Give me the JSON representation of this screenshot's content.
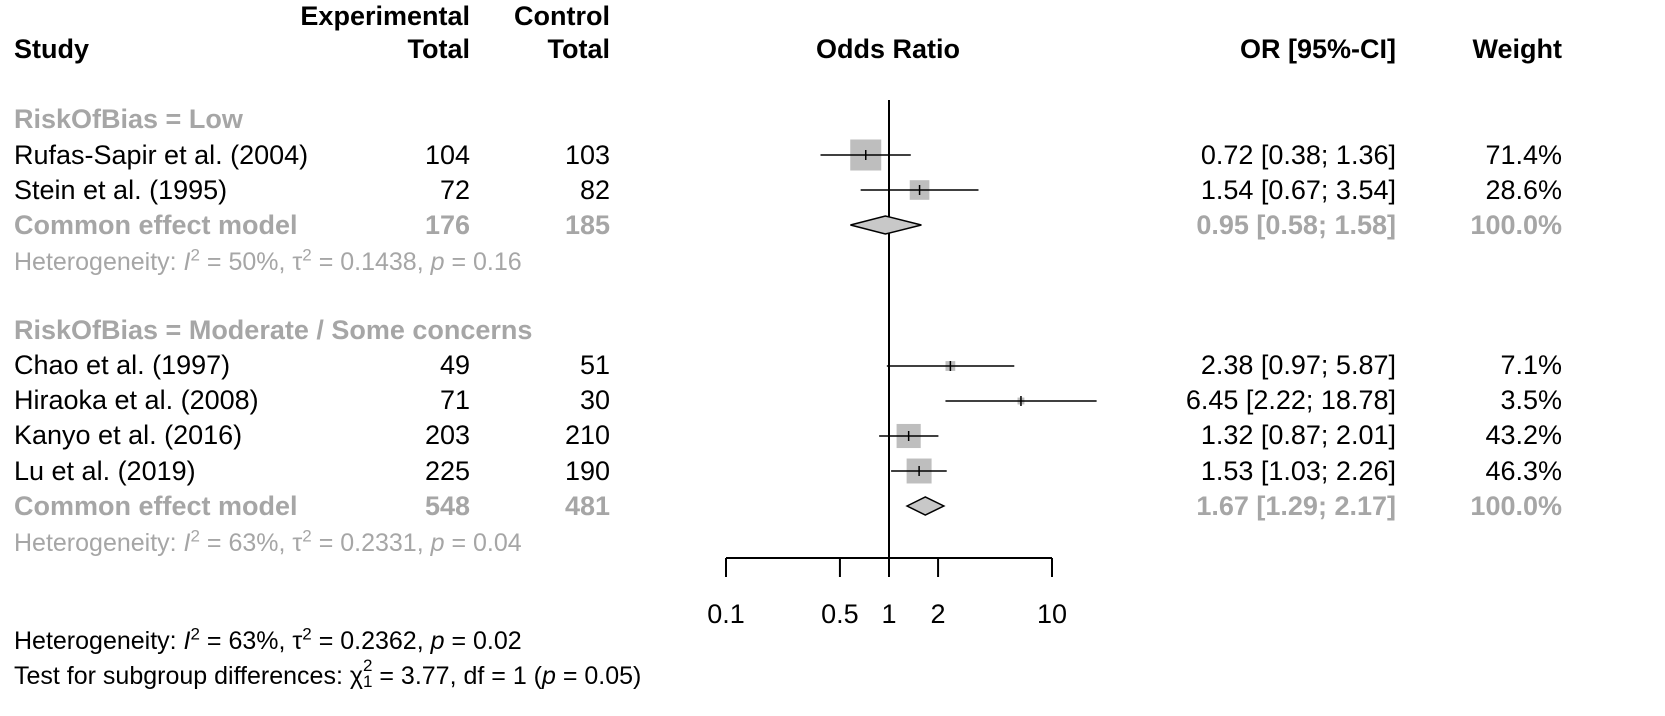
{
  "chart_data": {
    "type": "forest",
    "title": "Odds Ratio",
    "x_scale": "log",
    "xlim": [
      0.1,
      10
    ],
    "null_value": 1,
    "ticks": [
      "0.1",
      "0.5",
      "1",
      "2",
      "10"
    ],
    "tick_values": [
      0.1,
      0.5,
      1,
      2,
      10
    ],
    "header": {
      "study": "Study",
      "exp_top": "Experimental",
      "exp_bottom": "Total",
      "ctrl_top": "Control",
      "ctrl_bottom": "Total",
      "odds_ratio": "Odds Ratio",
      "or_ci": "OR [95%-CI]",
      "weight": "Weight"
    },
    "subgroups": [
      {
        "label": "RiskOfBias = Low",
        "studies": [
          {
            "name": "Rufas-Sapir et al. (2004)",
            "exp_total": "104",
            "ctrl_total": "103",
            "or_text": "0.72 [0.38;  1.36]",
            "weight_text": "71.4%",
            "or": 0.72,
            "lower": 0.38,
            "upper": 1.36,
            "weight": 71.4
          },
          {
            "name": "Stein et al. (1995)",
            "exp_total": "72",
            "ctrl_total": "82",
            "or_text": "1.54 [0.67;  3.54]",
            "weight_text": "28.6%",
            "or": 1.54,
            "lower": 0.67,
            "upper": 3.54,
            "weight": 28.6
          }
        ],
        "pooled": {
          "label": "Common effect model",
          "exp_total": "176",
          "ctrl_total": "185",
          "or_text": "0.95 [0.58;  1.58]",
          "weight_text": "100.0%",
          "or": 0.95,
          "lower": 0.58,
          "upper": 1.58
        },
        "heterogeneity": {
          "prefix": "Heterogeneity: ",
          "i2_sym": "I",
          "i2_exp": "2",
          "i2_val": " = 50%, ",
          "tau_sym": "τ",
          "tau_exp": "2",
          "tau_val": " = 0.1438, ",
          "p_sym": "p",
          "p_val": " = 0.16"
        }
      },
      {
        "label": "RiskOfBias = Moderate / Some concerns",
        "studies": [
          {
            "name": "Chao et al. (1997)",
            "exp_total": "49",
            "ctrl_total": "51",
            "or_text": "2.38 [0.97;  5.87]",
            "weight_text": "7.1%",
            "or": 2.38,
            "lower": 0.97,
            "upper": 5.87,
            "weight": 7.1
          },
          {
            "name": "Hiraoka et al. (2008)",
            "exp_total": "71",
            "ctrl_total": "30",
            "or_text": "6.45 [2.22; 18.78]",
            "weight_text": "3.5%",
            "or": 6.45,
            "lower": 2.22,
            "upper": 18.78,
            "weight": 3.5
          },
          {
            "name": "Kanyo et al. (2016)",
            "exp_total": "203",
            "ctrl_total": "210",
            "or_text": "1.32 [0.87;  2.01]",
            "weight_text": "43.2%",
            "or": 1.32,
            "lower": 0.87,
            "upper": 2.01,
            "weight": 43.2
          },
          {
            "name": "Lu et al. (2019)",
            "exp_total": "225",
            "ctrl_total": "190",
            "or_text": "1.53 [1.03;  2.26]",
            "weight_text": "46.3%",
            "or": 1.53,
            "lower": 1.03,
            "upper": 2.26,
            "weight": 46.3
          }
        ],
        "pooled": {
          "label": "Common effect model",
          "exp_total": "548",
          "ctrl_total": "481",
          "or_text": "1.67 [1.29;  2.17]",
          "weight_text": "100.0%",
          "or": 1.67,
          "lower": 1.29,
          "upper": 2.17
        },
        "heterogeneity": {
          "prefix": "Heterogeneity: ",
          "i2_sym": "I",
          "i2_exp": "2",
          "i2_val": " = 63%, ",
          "tau_sym": "τ",
          "tau_exp": "2",
          "tau_val": " = 0.2331, ",
          "p_sym": "p",
          "p_val": " = 0.04"
        }
      }
    ],
    "overall_heterogeneity": {
      "prefix": "Heterogeneity: ",
      "i2_sym": "I",
      "i2_exp": "2",
      "i2_val": " = 63%, ",
      "tau_sym": "τ",
      "tau_exp": "2",
      "tau_val": " = 0.2362, ",
      "p_sym": "p",
      "p_val": " = 0.02"
    },
    "subgroup_test": {
      "prefix": "Test for subgroup differences: ",
      "chi_sym": "χ",
      "chi_sup": "2",
      "chi_sub": "1",
      "chi_val": " = 3.77, df = 1 (",
      "p_sym": "p",
      "p_val": " = 0.05)"
    },
    "colors": {
      "square": "#bebebe",
      "diamond": "#c8c8c8",
      "grey_text": "#a6a6a6",
      "line": "#000000"
    }
  }
}
